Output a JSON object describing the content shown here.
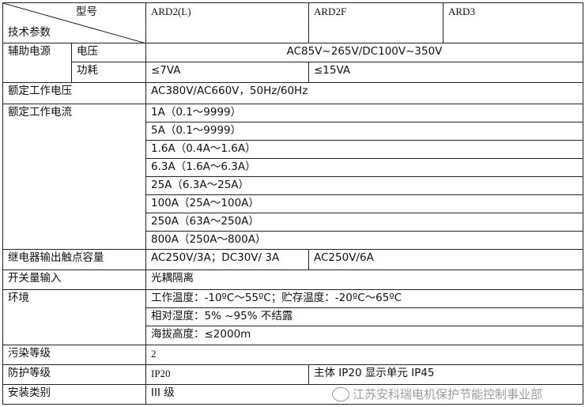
{
  "header": {
    "model_label": "型号",
    "param_label": "技术参数",
    "models": [
      "ARD2(L)",
      "ARD2F",
      "ARD3"
    ]
  },
  "rows": {
    "aux_power": {
      "label": "辅助电源",
      "voltage_label": "电压",
      "voltage_value": "AC85V~265V/DC100V~350V",
      "power_label": "功耗",
      "power_values": [
        "≤7VA",
        "≤15VA"
      ]
    },
    "rated_voltage": {
      "label": "额定工作电压",
      "value": "AC380V/AC660V，50Hz/60Hz"
    },
    "rated_current": {
      "label": "额定工作电流",
      "values": [
        "1A（0.1～9999）",
        "5A（0.1～9999）",
        "1.6A（0.4A～1.6A）",
        "6.3A（1.6A～6.3A）",
        "25A（6.3A～25A）",
        "100A（25A～100A）",
        "250A（63A～250A）",
        "800A（250A～800A）"
      ]
    },
    "relay": {
      "label": "继电器输出触点容量",
      "values": [
        "AC250V/3A；DC30V/ 3A",
        "AC250V/6A"
      ]
    },
    "switch_input": {
      "label": "开关量输入",
      "value": "光耦隔离"
    },
    "environment": {
      "label": "环境",
      "values": [
        "工作温度：-10ºC～55ºC；贮存温度：-20ºC～65ºC",
        "相对湿度：5% ~95% 不结露",
        "海拔高度：≤2000m"
      ]
    },
    "pollution": {
      "label": "污染等级",
      "value": "2"
    },
    "protection": {
      "label": "防护等级",
      "values": [
        "IP20",
        "主体 IP20 显示单元 IP45"
      ]
    },
    "install": {
      "label": "安装类别",
      "value": "III 级"
    }
  },
  "watermark": "江苏安科瑞电机保护节能控制事业部"
}
